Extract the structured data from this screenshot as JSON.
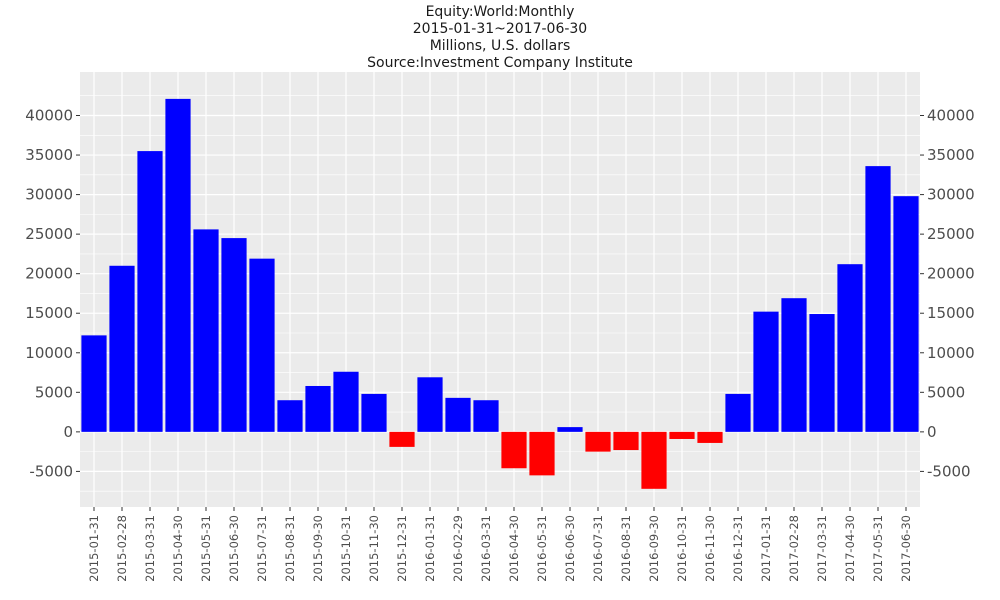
{
  "chart_data": {
    "type": "bar",
    "title_lines": [
      "Equity:World:Monthly",
      "2015-01-31~2017-06-30",
      "Millions, U.S. dollars",
      "Source:Investment Company Institute"
    ],
    "categories": [
      "2015-01-31",
      "2015-02-28",
      "2015-03-31",
      "2015-04-30",
      "2015-05-31",
      "2015-06-30",
      "2015-07-31",
      "2015-08-31",
      "2015-09-30",
      "2015-10-31",
      "2015-11-30",
      "2015-12-31",
      "2016-01-31",
      "2016-02-29",
      "2016-03-31",
      "2016-04-30",
      "2016-05-31",
      "2016-06-30",
      "2016-07-31",
      "2016-08-31",
      "2016-09-30",
      "2016-10-31",
      "2016-11-30",
      "2016-12-31",
      "2017-01-31",
      "2017-02-28",
      "2017-03-31",
      "2017-04-30",
      "2017-05-31",
      "2017-06-30"
    ],
    "values": [
      12200,
      21000,
      35500,
      42100,
      25600,
      24500,
      21900,
      4000,
      5800,
      7600,
      4800,
      -1900,
      6900,
      4300,
      4000,
      -4600,
      -5500,
      600,
      -2500,
      -2300,
      -7200,
      -900,
      -1400,
      4800,
      15200,
      16900,
      14900,
      21200,
      33600,
      29800
    ],
    "yticks": [
      -5000,
      0,
      5000,
      10000,
      15000,
      20000,
      25000,
      30000,
      35000,
      40000
    ],
    "ylim": [
      -9500,
      45500
    ],
    "positive_color": "#0000ff",
    "negative_color": "#ff0000",
    "panel_color": "#ebebeb",
    "grid_color": "#ffffff",
    "grid": true
  }
}
